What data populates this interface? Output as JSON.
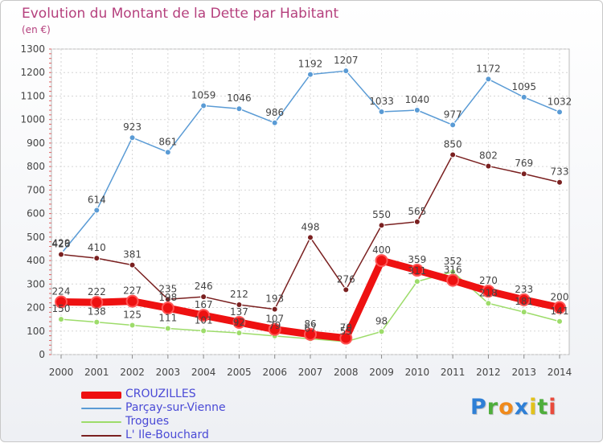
{
  "title": "Evolution du Montant de la Dette par Habitant",
  "subtitle": "(en €)",
  "brand": {
    "text": "Proxiti",
    "letters": [
      {
        "ch": "P",
        "color": "#2e7fd6"
      },
      {
        "ch": "r",
        "color": "#4fae3c"
      },
      {
        "ch": "o",
        "color": "#f08a1c"
      },
      {
        "ch": "x",
        "color": "#2e7fd6"
      },
      {
        "ch": "i",
        "color": "#e2c21b"
      },
      {
        "ch": "t",
        "color": "#4fae3c"
      },
      {
        "ch": "i",
        "color": "#e94b3c"
      }
    ]
  },
  "chart_data": {
    "type": "line",
    "x": [
      2000,
      2001,
      2002,
      2003,
      2004,
      2005,
      2006,
      2007,
      2008,
      2009,
      2010,
      2011,
      2012,
      2013,
      2014
    ],
    "ylim": [
      0,
      1300
    ],
    "yticks": [
      0,
      100,
      200,
      300,
      400,
      500,
      600,
      700,
      800,
      900,
      1000,
      1100,
      1200,
      1300
    ],
    "grid": true,
    "legend_position": "bottom-left",
    "series": [
      {
        "name": "CROUZILLES",
        "color": "#ee1111",
        "values": [
          224,
          222,
          227,
          198,
          167,
          137,
          107,
          86,
          70,
          400,
          359,
          316,
          270,
          233,
          200
        ]
      },
      {
        "name": "Parçay-sur-Vienne",
        "color": "#5a9bd5",
        "values": [
          429,
          614,
          923,
          861,
          1059,
          1046,
          986,
          1192,
          1207,
          1033,
          1040,
          977,
          1172,
          1095,
          1032
        ]
      },
      {
        "name": "Trogues",
        "color": "#9ddc6a",
        "values": [
          150,
          138,
          125,
          111,
          101,
          92,
          79,
          67,
          55,
          98,
          311,
          352,
          218,
          181,
          141
        ]
      },
      {
        "name": "L' Ile-Bouchard",
        "color": "#7a2020",
        "values": [
          426,
          410,
          381,
          235,
          246,
          212,
          193,
          498,
          276,
          550,
          565,
          850,
          802,
          769,
          733
        ]
      }
    ]
  }
}
